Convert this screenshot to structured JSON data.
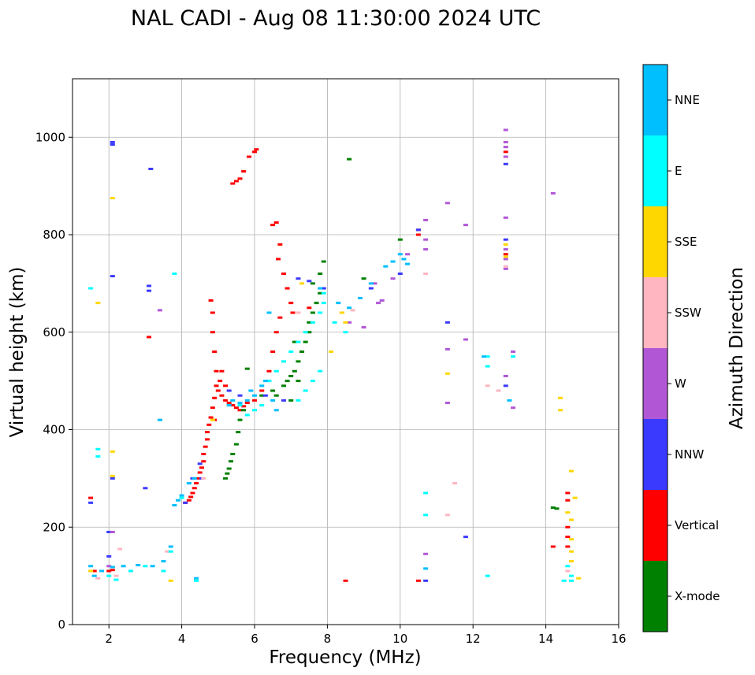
{
  "chart_data": {
    "type": "scatter",
    "title": "NAL CADI - Aug 08 11:30:00 2024 UTC",
    "xlabel": "Frequency (MHz)",
    "ylabel": "Virtual height (km)",
    "xlim": [
      1,
      16
    ],
    "ylim": [
      0,
      1120
    ],
    "xticks": [
      2,
      4,
      6,
      8,
      10,
      12,
      14,
      16
    ],
    "yticks": [
      0,
      200,
      400,
      600,
      800,
      1000
    ],
    "grid": true,
    "colorbar": {
      "label": "Azimuth Direction",
      "categories": [
        {
          "name": "X-mode",
          "color": "#008000"
        },
        {
          "name": "Vertical",
          "color": "#ff0000"
        },
        {
          "name": "NNW",
          "color": "#3a3aff"
        },
        {
          "name": "W",
          "color": "#b157d6"
        },
        {
          "name": "SSW",
          "color": "#ffb6c1"
        },
        {
          "name": "SSE",
          "color": "#ffd700"
        },
        {
          "name": "E",
          "color": "#00ffff"
        },
        {
          "name": "NNE",
          "color": "#00bfff"
        }
      ]
    },
    "series": [
      {
        "name": "Vertical",
        "points": [
          [
            1.5,
            260
          ],
          [
            1.6,
            110
          ],
          [
            2.0,
            110
          ],
          [
            2.1,
            112
          ],
          [
            3.1,
            590
          ],
          [
            4.1,
            250
          ],
          [
            4.2,
            255
          ],
          [
            4.25,
            262
          ],
          [
            4.3,
            270
          ],
          [
            4.35,
            280
          ],
          [
            4.4,
            290
          ],
          [
            4.45,
            300
          ],
          [
            4.5,
            312
          ],
          [
            4.55,
            322
          ],
          [
            4.6,
            335
          ],
          [
            4.6,
            350
          ],
          [
            4.65,
            365
          ],
          [
            4.7,
            380
          ],
          [
            4.7,
            395
          ],
          [
            4.75,
            410
          ],
          [
            4.8,
            425
          ],
          [
            4.85,
            445
          ],
          [
            4.9,
            465
          ],
          [
            4.95,
            490
          ],
          [
            4.95,
            520
          ],
          [
            4.9,
            560
          ],
          [
            4.85,
            600
          ],
          [
            4.85,
            640
          ],
          [
            4.8,
            665
          ],
          [
            5.0,
            480
          ],
          [
            5.1,
            470
          ],
          [
            5.2,
            460
          ],
          [
            5.3,
            455
          ],
          [
            5.4,
            450
          ],
          [
            5.5,
            445
          ],
          [
            5.6,
            440
          ],
          [
            5.7,
            448
          ],
          [
            5.8,
            455
          ],
          [
            5.1,
            520
          ],
          [
            5.05,
            500
          ],
          [
            4.9,
            420
          ],
          [
            5.2,
            490
          ],
          [
            5.4,
            905
          ],
          [
            5.5,
            910
          ],
          [
            5.6,
            915
          ],
          [
            5.7,
            930
          ],
          [
            5.85,
            960
          ],
          [
            6.0,
            970
          ],
          [
            6.05,
            975
          ],
          [
            6.0,
            460
          ],
          [
            6.2,
            480
          ],
          [
            6.4,
            520
          ],
          [
            6.5,
            560
          ],
          [
            6.6,
            600
          ],
          [
            6.7,
            630
          ],
          [
            6.5,
            820
          ],
          [
            6.6,
            825
          ],
          [
            6.7,
            780
          ],
          [
            6.65,
            750
          ],
          [
            6.8,
            720
          ],
          [
            6.9,
            690
          ],
          [
            7.0,
            660
          ],
          [
            7.05,
            640
          ],
          [
            7.5,
            650
          ],
          [
            8.5,
            90
          ],
          [
            10.5,
            90
          ],
          [
            10.5,
            800
          ],
          [
            10.5,
            810
          ],
          [
            12.9,
            970
          ],
          [
            12.9,
            760
          ],
          [
            14.2,
            160
          ],
          [
            14.6,
            160
          ],
          [
            14.6,
            180
          ],
          [
            14.6,
            200
          ],
          [
            14.6,
            255
          ],
          [
            14.6,
            270
          ]
        ]
      },
      {
        "name": "X-mode",
        "points": [
          [
            5.2,
            300
          ],
          [
            5.25,
            310
          ],
          [
            5.3,
            320
          ],
          [
            5.35,
            335
          ],
          [
            5.4,
            350
          ],
          [
            5.5,
            370
          ],
          [
            5.55,
            395
          ],
          [
            5.6,
            420
          ],
          [
            5.7,
            440
          ],
          [
            6.2,
            470
          ],
          [
            6.5,
            480
          ],
          [
            6.8,
            490
          ],
          [
            6.9,
            500
          ],
          [
            7.0,
            510
          ],
          [
            7.1,
            520
          ],
          [
            7.2,
            540
          ],
          [
            7.3,
            560
          ],
          [
            7.4,
            580
          ],
          [
            7.5,
            600
          ],
          [
            7.5,
            620
          ],
          [
            7.6,
            640
          ],
          [
            7.7,
            660
          ],
          [
            7.8,
            680
          ],
          [
            7.6,
            700
          ],
          [
            7.8,
            720
          ],
          [
            7.9,
            745
          ],
          [
            8.6,
            955
          ],
          [
            9.0,
            710
          ],
          [
            10.0,
            790
          ],
          [
            14.2,
            240
          ],
          [
            14.3,
            238
          ],
          [
            6.6,
            470
          ],
          [
            7.0,
            460
          ],
          [
            7.2,
            500
          ],
          [
            5.8,
            525
          ],
          [
            7.1,
            580
          ]
        ]
      },
      {
        "name": "NNW",
        "points": [
          [
            1.5,
            250
          ],
          [
            2.0,
            190
          ],
          [
            2.0,
            140
          ],
          [
            2.1,
            990
          ],
          [
            2.1,
            985
          ],
          [
            2.1,
            715
          ],
          [
            2.1,
            300
          ],
          [
            3.15,
            935
          ],
          [
            3.1,
            695
          ],
          [
            3.1,
            685
          ],
          [
            3.0,
            280
          ],
          [
            4.1,
            250
          ],
          [
            4.3,
            300
          ],
          [
            4.5,
            330
          ],
          [
            4.55,
            300
          ],
          [
            5.3,
            480
          ],
          [
            5.6,
            470
          ],
          [
            6.3,
            470
          ],
          [
            6.8,
            460
          ],
          [
            7.2,
            710
          ],
          [
            7.5,
            705
          ],
          [
            7.9,
            690
          ],
          [
            9.2,
            690
          ],
          [
            10.0,
            720
          ],
          [
            10.5,
            810
          ],
          [
            10.7,
            90
          ],
          [
            11.3,
            620
          ],
          [
            11.8,
            180
          ],
          [
            12.9,
            945
          ],
          [
            12.9,
            790
          ],
          [
            12.9,
            490
          ]
        ]
      },
      {
        "name": "W",
        "points": [
          [
            2.1,
            190
          ],
          [
            2.0,
            120
          ],
          [
            3.4,
            645
          ],
          [
            8.4,
            640
          ],
          [
            8.6,
            620
          ],
          [
            9.0,
            610
          ],
          [
            9.4,
            660
          ],
          [
            9.5,
            665
          ],
          [
            9.3,
            700
          ],
          [
            9.8,
            710
          ],
          [
            10.2,
            760
          ],
          [
            10.7,
            830
          ],
          [
            10.7,
            790
          ],
          [
            10.7,
            770
          ],
          [
            11.3,
            865
          ],
          [
            11.3,
            565
          ],
          [
            11.3,
            455
          ],
          [
            11.8,
            820
          ],
          [
            11.8,
            585
          ],
          [
            12.9,
            1015
          ],
          [
            12.9,
            990
          ],
          [
            12.9,
            980
          ],
          [
            12.9,
            960
          ],
          [
            12.9,
            835
          ],
          [
            12.9,
            770
          ],
          [
            12.9,
            750
          ],
          [
            12.9,
            730
          ],
          [
            12.9,
            510
          ],
          [
            13.1,
            560
          ],
          [
            13.1,
            445
          ],
          [
            14.2,
            885
          ],
          [
            10.7,
            145
          ]
        ]
      },
      {
        "name": "SSW",
        "points": [
          [
            1.7,
            95
          ],
          [
            2.2,
            100
          ],
          [
            2.3,
            155
          ],
          [
            3.6,
            150
          ],
          [
            4.6,
            300
          ],
          [
            7.2,
            640
          ],
          [
            8.7,
            645
          ],
          [
            10.7,
            720
          ],
          [
            11.5,
            290
          ],
          [
            11.3,
            225
          ],
          [
            12.4,
            490
          ],
          [
            12.7,
            480
          ],
          [
            12.9,
            735
          ],
          [
            14.6,
            110
          ]
        ]
      },
      {
        "name": "SSE",
        "points": [
          [
            1.5,
            110
          ],
          [
            1.7,
            660
          ],
          [
            2.1,
            875
          ],
          [
            2.1,
            355
          ],
          [
            2.1,
            305
          ],
          [
            3.7,
            90
          ],
          [
            4.85,
            420
          ],
          [
            7.3,
            700
          ],
          [
            8.1,
            560
          ],
          [
            8.4,
            640
          ],
          [
            8.5,
            620
          ],
          [
            11.3,
            515
          ],
          [
            12.9,
            780
          ],
          [
            12.9,
            755
          ],
          [
            14.4,
            465
          ],
          [
            14.4,
            440
          ],
          [
            14.7,
            315
          ],
          [
            14.8,
            260
          ],
          [
            14.9,
            95
          ],
          [
            14.7,
            215
          ],
          [
            14.7,
            175
          ],
          [
            14.7,
            150
          ],
          [
            14.7,
            130
          ],
          [
            14.6,
            230
          ]
        ]
      },
      {
        "name": "E",
        "points": [
          [
            1.5,
            690
          ],
          [
            1.7,
            360
          ],
          [
            1.7,
            345
          ],
          [
            2.0,
            100
          ],
          [
            2.2,
            92
          ],
          [
            2.6,
            110
          ],
          [
            3.0,
            120
          ],
          [
            3.5,
            110
          ],
          [
            3.7,
            150
          ],
          [
            3.8,
            720
          ],
          [
            4.0,
            260
          ],
          [
            4.4,
            90
          ],
          [
            5.6,
            450
          ],
          [
            5.8,
            430
          ],
          [
            6.0,
            440
          ],
          [
            6.2,
            450
          ],
          [
            6.4,
            500
          ],
          [
            6.6,
            520
          ],
          [
            6.8,
            540
          ],
          [
            7.0,
            560
          ],
          [
            7.2,
            580
          ],
          [
            7.4,
            600
          ],
          [
            7.6,
            620
          ],
          [
            7.8,
            640
          ],
          [
            7.9,
            680
          ],
          [
            7.8,
            520
          ],
          [
            7.6,
            500
          ],
          [
            7.4,
            480
          ],
          [
            7.2,
            460
          ],
          [
            7.9,
            660
          ],
          [
            8.2,
            620
          ],
          [
            8.5,
            600
          ],
          [
            10.7,
            270
          ],
          [
            10.7,
            225
          ],
          [
            12.4,
            100
          ],
          [
            12.4,
            550
          ],
          [
            12.4,
            530
          ],
          [
            13.1,
            550
          ],
          [
            14.5,
            90
          ],
          [
            14.6,
            120
          ],
          [
            14.7,
            100
          ],
          [
            14.7,
            90
          ]
        ]
      },
      {
        "name": "NNE",
        "points": [
          [
            1.5,
            120
          ],
          [
            1.6,
            100
          ],
          [
            1.8,
            110
          ],
          [
            2.1,
            118
          ],
          [
            2.4,
            120
          ],
          [
            2.8,
            122
          ],
          [
            3.2,
            120
          ],
          [
            3.5,
            130
          ],
          [
            3.7,
            160
          ],
          [
            3.8,
            245
          ],
          [
            3.9,
            255
          ],
          [
            4.0,
            265
          ],
          [
            4.2,
            290
          ],
          [
            4.35,
            300
          ],
          [
            5.3,
            450
          ],
          [
            5.4,
            460
          ],
          [
            5.6,
            455
          ],
          [
            5.8,
            460
          ],
          [
            6.0,
            470
          ],
          [
            6.2,
            490
          ],
          [
            6.3,
            500
          ],
          [
            6.5,
            460
          ],
          [
            6.6,
            440
          ],
          [
            5.9,
            480
          ],
          [
            6.4,
            640
          ],
          [
            7.8,
            690
          ],
          [
            8.3,
            660
          ],
          [
            8.6,
            650
          ],
          [
            8.9,
            670
          ],
          [
            9.2,
            700
          ],
          [
            9.6,
            735
          ],
          [
            9.8,
            745
          ],
          [
            10.0,
            760
          ],
          [
            10.1,
            750
          ],
          [
            10.2,
            740
          ],
          [
            3.4,
            420
          ],
          [
            4.4,
            95
          ],
          [
            10.7,
            115
          ],
          [
            12.3,
            550
          ],
          [
            13.0,
            460
          ]
        ]
      }
    ]
  }
}
